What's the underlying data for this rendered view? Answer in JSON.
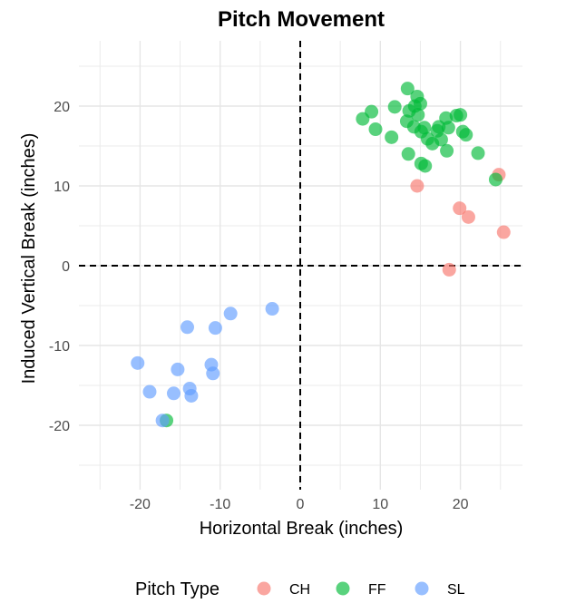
{
  "chart_data": {
    "type": "scatter",
    "title": "Pitch Movement",
    "xlabel": "Horizontal Break (inches)",
    "ylabel": "Induced Vertical Break (inches)",
    "xlim": [
      -27.7,
      27.7
    ],
    "ylim": [
      -28,
      28
    ],
    "x_ticks": [
      -20,
      -10,
      0,
      10,
      20
    ],
    "y_ticks": [
      -20,
      -10,
      0,
      10,
      20
    ],
    "grid": true,
    "reference_lines": {
      "x": 0,
      "y": 0,
      "style": "dashed"
    },
    "legend": {
      "title": "Pitch Type",
      "position": "bottom",
      "entries": [
        "CH",
        "FF",
        "SL"
      ]
    },
    "series": [
      {
        "name": "CH",
        "color": "#F8766D",
        "points": [
          {
            "x": 14.6,
            "y": 10.0
          },
          {
            "x": 18.6,
            "y": -0.5
          },
          {
            "x": 19.9,
            "y": 7.2
          },
          {
            "x": 21.0,
            "y": 6.1
          },
          {
            "x": 24.8,
            "y": 11.4
          },
          {
            "x": 25.4,
            "y": 4.2
          }
        ]
      },
      {
        "name": "FF",
        "color": "#00BA38",
        "points": [
          {
            "x": 7.8,
            "y": 18.4
          },
          {
            "x": 8.9,
            "y": 19.3
          },
          {
            "x": 9.4,
            "y": 17.1
          },
          {
            "x": 11.4,
            "y": 16.1
          },
          {
            "x": 11.8,
            "y": 19.9
          },
          {
            "x": 13.3,
            "y": 18.1
          },
          {
            "x": 13.4,
            "y": 22.2
          },
          {
            "x": 13.6,
            "y": 19.4
          },
          {
            "x": 13.5,
            "y": 14.0
          },
          {
            "x": 14.2,
            "y": 17.4
          },
          {
            "x": 14.3,
            "y": 20.0
          },
          {
            "x": 14.6,
            "y": 21.2
          },
          {
            "x": 14.7,
            "y": 18.9
          },
          {
            "x": 15.0,
            "y": 20.3
          },
          {
            "x": 15.1,
            "y": 16.8
          },
          {
            "x": 15.1,
            "y": 12.8
          },
          {
            "x": 15.5,
            "y": 17.3
          },
          {
            "x": 15.6,
            "y": 12.5
          },
          {
            "x": 15.9,
            "y": 15.9
          },
          {
            "x": 16.5,
            "y": 15.3
          },
          {
            "x": 17.1,
            "y": 16.9
          },
          {
            "x": 17.3,
            "y": 17.4
          },
          {
            "x": 17.6,
            "y": 15.8
          },
          {
            "x": 18.2,
            "y": 18.5
          },
          {
            "x": 18.3,
            "y": 14.4
          },
          {
            "x": 18.5,
            "y": 17.3
          },
          {
            "x": 19.5,
            "y": 18.8
          },
          {
            "x": 20.0,
            "y": 18.9
          },
          {
            "x": 20.3,
            "y": 16.8
          },
          {
            "x": 20.7,
            "y": 16.4
          },
          {
            "x": 22.2,
            "y": 14.1
          },
          {
            "x": 24.4,
            "y": 10.8
          },
          {
            "x": -16.7,
            "y": -19.4
          }
        ]
      },
      {
        "name": "SL",
        "color": "#619CFF",
        "points": [
          {
            "x": -20.3,
            "y": -12.2
          },
          {
            "x": -18.8,
            "y": -15.8
          },
          {
            "x": -17.2,
            "y": -19.4
          },
          {
            "x": -15.8,
            "y": -16.0
          },
          {
            "x": -15.3,
            "y": -13.0
          },
          {
            "x": -14.1,
            "y": -7.7
          },
          {
            "x": -13.8,
            "y": -15.4
          },
          {
            "x": -13.6,
            "y": -16.3
          },
          {
            "x": -11.1,
            "y": -12.4
          },
          {
            "x": -10.9,
            "y": -13.5
          },
          {
            "x": -10.6,
            "y": -7.8
          },
          {
            "x": -8.7,
            "y": -6.0
          },
          {
            "x": -3.5,
            "y": -5.4
          }
        ]
      }
    ]
  }
}
